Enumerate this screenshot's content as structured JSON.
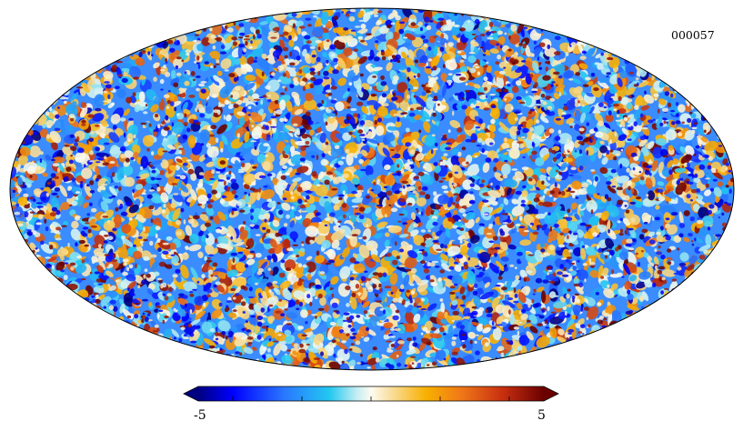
{
  "map": {
    "identifier": "000057",
    "projection": "mollweide",
    "field": "random-fluctuation-map"
  },
  "colorbar": {
    "min_label": "-5",
    "max_label": "5",
    "min_value": -5,
    "max_value": 5,
    "tick_values": [
      -4,
      -2,
      0,
      2,
      4
    ],
    "extend": "both"
  },
  "colormap": [
    {
      "stop": 0.0,
      "color": "#000080"
    },
    {
      "stop": 0.1,
      "color": "#0000ff"
    },
    {
      "stop": 0.25,
      "color": "#2a78ff"
    },
    {
      "stop": 0.38,
      "color": "#22c8f0"
    },
    {
      "stop": 0.46,
      "color": "#c6eef2"
    },
    {
      "stop": 0.5,
      "color": "#fdfbf0"
    },
    {
      "stop": 0.56,
      "color": "#f8dd9a"
    },
    {
      "stop": 0.66,
      "color": "#f8b000"
    },
    {
      "stop": 0.76,
      "color": "#f07818"
    },
    {
      "stop": 0.88,
      "color": "#c83010"
    },
    {
      "stop": 1.0,
      "color": "#6a0000"
    }
  ]
}
